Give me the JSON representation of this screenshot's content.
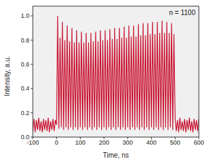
{
  "chart_data": {
    "type": "line",
    "x_label": "Time, ns",
    "y_label": "Intensity, a.u.",
    "annotation": "n = 1100",
    "grid": false,
    "xlim": [
      -100,
      600
    ],
    "xticks": [
      -100,
      0,
      100,
      200,
      300,
      400,
      500,
      600
    ],
    "ylim": [
      0,
      1.08
    ],
    "yticks": [
      {
        "value": 0,
        "label": "0.0"
      },
      0.2,
      0.4,
      0.6,
      0.8,
      {
        "value": 1,
        "label": "1.0"
      }
    ],
    "series": [
      {
        "color": "#c8102e",
        "x": [
          -100,
          -95,
          -90,
          -85,
          -80,
          -75,
          -70,
          -65,
          -60,
          -55,
          -50,
          -45,
          -40,
          -35,
          -30,
          -25,
          -20,
          -15,
          -10,
          -5,
          0,
          5,
          10,
          15,
          20,
          25,
          30,
          35,
          40,
          45,
          50,
          55,
          60,
          65,
          70,
          75,
          80,
          85,
          90,
          95,
          100,
          105,
          110,
          115,
          120,
          125,
          130,
          135,
          140,
          145,
          150,
          155,
          160,
          165,
          170,
          175,
          180,
          185,
          190,
          195,
          200,
          205,
          210,
          215,
          220,
          225,
          230,
          235,
          240,
          245,
          250,
          255,
          260,
          265,
          270,
          275,
          280,
          285,
          290,
          295,
          300,
          305,
          310,
          315,
          320,
          325,
          330,
          335,
          340,
          345,
          350,
          355,
          360,
          365,
          370,
          375,
          380,
          385,
          390,
          395,
          400,
          405,
          410,
          415,
          420,
          425,
          430,
          435,
          440,
          445,
          450,
          455,
          460,
          465,
          470,
          475,
          480,
          485,
          490,
          495,
          500,
          505,
          510,
          515,
          520,
          525,
          530,
          535,
          540,
          545,
          550,
          555,
          560,
          565,
          570,
          575,
          580,
          585,
          590,
          595,
          600
        ],
        "values": [
          0.05,
          0.15,
          0.04,
          0.14,
          0.06,
          0.16,
          0.05,
          0.13,
          0.04,
          0.15,
          0.06,
          0.14,
          0.05,
          0.16,
          0.04,
          0.13,
          0.06,
          0.15,
          0.05,
          0.14,
          0.1,
          1.0,
          0.07,
          0.82,
          0.08,
          0.95,
          0.06,
          0.8,
          0.08,
          0.92,
          0.06,
          0.79,
          0.08,
          0.9,
          0.06,
          0.78,
          0.08,
          0.88,
          0.06,
          0.78,
          0.08,
          0.87,
          0.06,
          0.78,
          0.08,
          0.86,
          0.06,
          0.78,
          0.08,
          0.86,
          0.06,
          0.79,
          0.08,
          0.87,
          0.06,
          0.79,
          0.08,
          0.88,
          0.06,
          0.8,
          0.08,
          0.88,
          0.06,
          0.8,
          0.08,
          0.89,
          0.06,
          0.81,
          0.08,
          0.9,
          0.06,
          0.81,
          0.08,
          0.9,
          0.06,
          0.82,
          0.08,
          0.91,
          0.06,
          0.82,
          0.08,
          0.92,
          0.06,
          0.83,
          0.08,
          0.92,
          0.06,
          0.83,
          0.08,
          0.93,
          0.06,
          0.84,
          0.08,
          0.94,
          0.06,
          0.84,
          0.08,
          0.94,
          0.06,
          0.85,
          0.08,
          0.95,
          0.06,
          0.85,
          0.08,
          0.95,
          0.06,
          0.86,
          0.08,
          0.96,
          0.06,
          0.86,
          0.08,
          0.95,
          0.06,
          0.86,
          0.08,
          0.94,
          0.06,
          0.85,
          0.15,
          0.05,
          0.14,
          0.04,
          0.16,
          0.06,
          0.13,
          0.05,
          0.15,
          0.04,
          0.14,
          0.06,
          0.16,
          0.05,
          0.13,
          0.04,
          0.15,
          0.06,
          0.14,
          0.05,
          0.15
        ]
      }
    ]
  }
}
